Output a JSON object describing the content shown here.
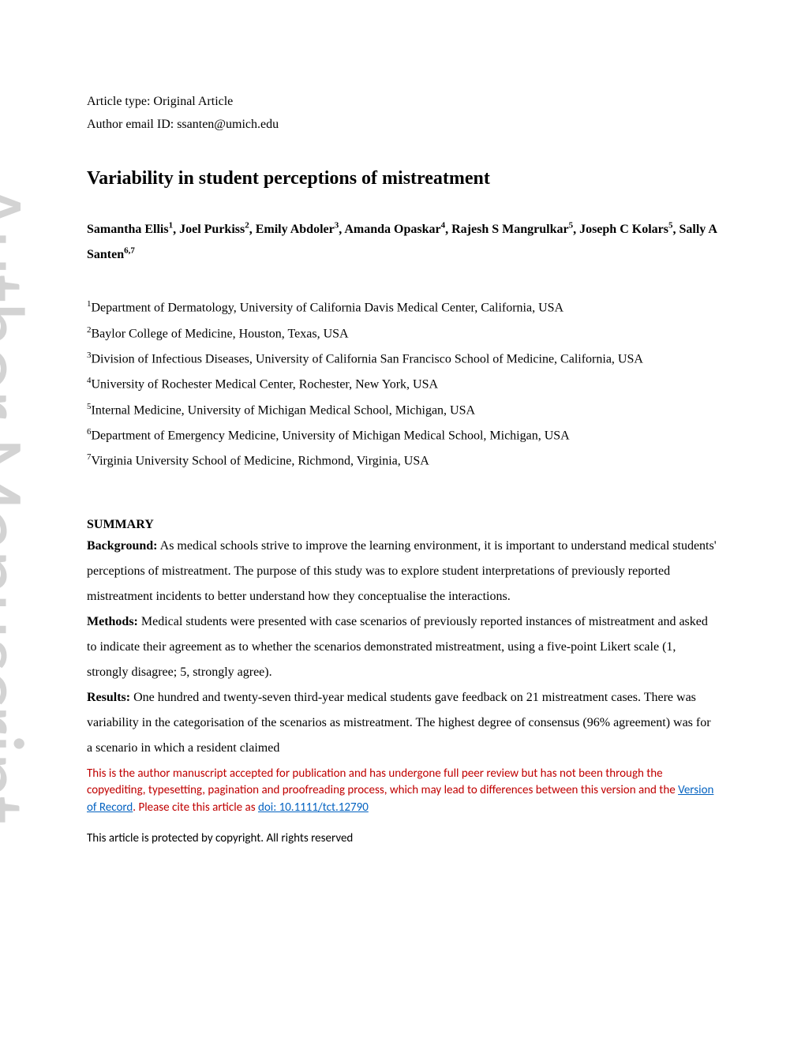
{
  "meta": {
    "article_type_label": "Article type: ",
    "article_type": "Original Article",
    "author_email_label": "Author email ID: ",
    "author_email": "ssanten@umich.edu"
  },
  "title": "Variability in student perceptions of mistreatment",
  "authors": [
    {
      "name": "Samantha Ellis",
      "sup": "1"
    },
    {
      "name": "Joel Purkiss",
      "sup": "2"
    },
    {
      "name": "Emily Abdoler",
      "sup": "3"
    },
    {
      "name": "Amanda Opaskar",
      "sup": "4"
    },
    {
      "name": "Rajesh S Mangrulkar",
      "sup": "5"
    },
    {
      "name": "Joseph C Kolars",
      "sup": "5"
    },
    {
      "name": "Sally A Santen",
      "sup": "6,7"
    }
  ],
  "affiliations": [
    {
      "sup": "1",
      "text": "Department of Dermatology, University of California Davis Medical Center, California, USA"
    },
    {
      "sup": "2",
      "text": "Baylor College of Medicine, Houston, Texas, USA"
    },
    {
      "sup": "3",
      "text": "Division of Infectious Diseases, University of California San Francisco School of Medicine, California, USA"
    },
    {
      "sup": "4",
      "text": "University of Rochester Medical Center, Rochester, New York, USA"
    },
    {
      "sup": "5",
      "text": "Internal Medicine, University of Michigan Medical School, Michigan, USA"
    },
    {
      "sup": "6",
      "text": "Department of Emergency Medicine, University of Michigan Medical School, Michigan, USA"
    },
    {
      "sup": "7",
      "text": "Virginia University School of Medicine, Richmond, Virginia, USA"
    }
  ],
  "summary": {
    "heading": "SUMMARY",
    "background_label": "Background:",
    "background": "  As medical schools strive to improve the learning environment, it is important to understand medical students' perceptions of mistreatment. The purpose of this study was to explore student interpretations of previously reported mistreatment incidents to better understand how they conceptualise the interactions.",
    "methods_label": "Methods:",
    "methods": "  Medical students were presented with case scenarios of previously reported instances of mistreatment and asked to indicate their agreement as to whether the scenarios demonstrated mistreatment, using a five-point Likert scale (1, strongly disagree; 5, strongly agree).",
    "results_label": "Results:",
    "results": "  One hundred and twenty-seven third-year medical students gave feedback on 21 mistreatment cases. There was variability in the categorisation of the scenarios as mistreatment. The highest degree of consensus (96% agreement) was for a scenario in which a resident claimed"
  },
  "disclaimer": {
    "text_before": "This is the author manuscript accepted for publication and has undergone full peer review but has not been through the copyediting, typesetting, pagination and proofreading process, which may lead to differences between this version and the ",
    "version_link": "Version of Record",
    "text_middle": ". Please cite this article as ",
    "doi_link": "doi: 10.1111/tct.12790"
  },
  "copyright": "This article is protected by copyright. All rights reserved",
  "watermark": "Author Manuscript",
  "colors": {
    "text": "#000000",
    "disclaimer": "#c00000",
    "link": "#0563c1",
    "watermark": "rgba(128,128,128,0.35)",
    "background": "#ffffff"
  },
  "typography": {
    "body_font": "Times New Roman",
    "body_size_pt": 12,
    "title_size_pt": 18,
    "disclaimer_font": "Calibri",
    "disclaimer_size_pt": 11
  }
}
